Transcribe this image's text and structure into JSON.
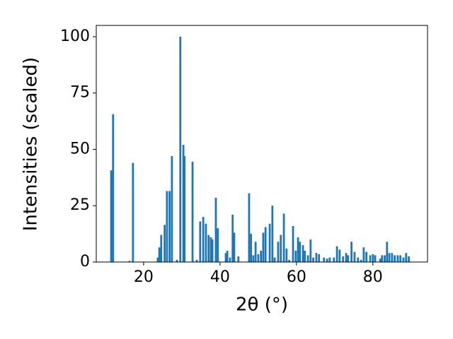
{
  "chart_data": {
    "type": "bar",
    "xlabel": "2θ (°)",
    "ylabel": "Intensities (scaled)",
    "x": [
      11.5,
      12.0,
      16.3,
      17.2,
      23.7,
      24.1,
      24.6,
      25.5,
      26.1,
      26.8,
      27.4,
      28.7,
      29.6,
      30.4,
      30.7,
      32.8,
      33.9,
      34.8,
      35.6,
      36.3,
      37.0,
      37.6,
      38.0,
      38.9,
      39.4,
      41.5,
      41.9,
      42.6,
      43.3,
      43.7,
      44.8,
      47.6,
      48.1,
      48.7,
      49.3,
      50.0,
      50.7,
      51.3,
      51.9,
      53.0,
      53.7,
      54.3,
      55.2,
      55.9,
      56.7,
      57.4,
      58.1,
      59.1,
      59.8,
      60.4,
      60.9,
      61.7,
      62.2,
      63.0,
      63.7,
      64.4,
      65.2,
      65.9,
      67.2,
      68.0,
      68.7,
      69.8,
      70.6,
      71.3,
      72.2,
      73.0,
      73.5,
      74.4,
      75.2,
      76.1,
      76.9,
      77.6,
      78.3,
      79.3,
      80.0,
      80.6,
      81.9,
      82.4,
      83.1,
      83.7,
      84.3,
      85.0,
      85.7,
      86.5,
      87.2,
      88.0,
      88.7,
      89.4
    ],
    "values": [
      40.7,
      65.6,
      0.5,
      44,
      2,
      6.5,
      12,
      16.5,
      31.5,
      31.5,
      47,
      1,
      100,
      52,
      47,
      44.5,
      1,
      18,
      20,
      17,
      12,
      11,
      10,
      28.5,
      15,
      4,
      5,
      2,
      21,
      13,
      2.5,
      30.5,
      12.5,
      3,
      9,
      3.5,
      5,
      13,
      15.5,
      17,
      25,
      2,
      9,
      12,
      21.5,
      6,
      1,
      16,
      5,
      11,
      9,
      7.5,
      5,
      3,
      10,
      2,
      4,
      3.5,
      2,
      1.5,
      2,
      2,
      7,
      5.5,
      2.5,
      4,
      3,
      9,
      4.5,
      2,
      1,
      6.5,
      4.5,
      3,
      3.5,
      3,
      1.5,
      3,
      3,
      9,
      4,
      4,
      3,
      3,
      3,
      2,
      4,
      2.5
    ],
    "color": "#1f77b4",
    "xlim": [
      7.6,
      94.3
    ],
    "xticks": [
      20,
      40,
      60,
      80
    ],
    "ylim": [
      0,
      105
    ],
    "yticks": [
      0,
      25,
      50,
      75,
      100
    ]
  }
}
